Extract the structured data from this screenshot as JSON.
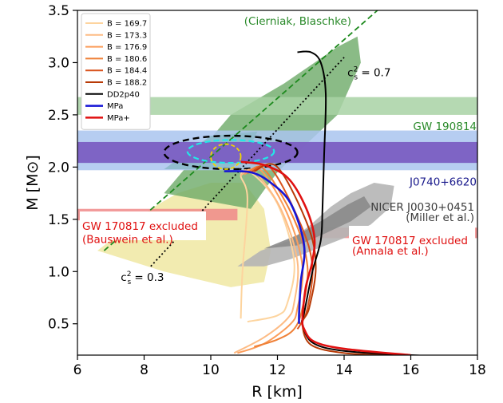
{
  "chart_data": {
    "type": "line",
    "xlabel": "R [km]",
    "ylabel": "M [M⊙]",
    "xlim": [
      6,
      18
    ],
    "ylim": [
      0.2,
      3.5
    ],
    "xticks": [
      "6",
      "8",
      "10",
      "12",
      "14",
      "16",
      "18"
    ],
    "yticks": [
      "0.5",
      "1.0",
      "1.5",
      "2.0",
      "2.5",
      "3.0",
      "3.5"
    ],
    "legend_position": "top-left",
    "series": [
      {
        "name": "B = 169.7",
        "color": "#fdd49e",
        "points": [
          [
            10.9,
            0.55
          ],
          [
            10.95,
            1.0
          ],
          [
            11.1,
            1.7
          ],
          [
            10.9,
            1.92
          ],
          [
            11.2,
            1.95
          ],
          [
            12.0,
            1.65
          ],
          [
            12.5,
            1.1
          ],
          [
            12.3,
            0.7
          ],
          [
            12.0,
            0.58
          ],
          [
            11.1,
            0.52
          ]
        ]
      },
      {
        "name": "B = 173.3",
        "color": "#fdbb84",
        "points": [
          [
            10.9,
            1.92
          ],
          [
            11.3,
            1.96
          ],
          [
            12.1,
            1.6
          ],
          [
            12.6,
            1.1
          ],
          [
            12.5,
            0.7
          ],
          [
            12.3,
            0.55
          ],
          [
            11.6,
            0.37
          ],
          [
            10.7,
            0.22
          ]
        ]
      },
      {
        "name": "B = 176.9",
        "color": "#fc9d5a",
        "points": [
          [
            11.0,
            1.93
          ],
          [
            11.5,
            1.97
          ],
          [
            12.3,
            1.55
          ],
          [
            12.75,
            1.05
          ],
          [
            12.6,
            0.65
          ],
          [
            12.4,
            0.5
          ],
          [
            11.6,
            0.31
          ],
          [
            10.8,
            0.22
          ]
        ]
      },
      {
        "name": "B = 180.6",
        "color": "#ef8037",
        "points": [
          [
            11.1,
            1.94
          ],
          [
            11.6,
            1.98
          ],
          [
            12.5,
            1.5
          ],
          [
            12.9,
            1.05
          ],
          [
            12.75,
            0.65
          ],
          [
            12.5,
            0.45
          ],
          [
            12.0,
            0.35
          ],
          [
            11.3,
            0.28
          ]
        ]
      },
      {
        "name": "B = 184.4",
        "color": "#d9531e",
        "points": [
          [
            11.2,
            1.95
          ],
          [
            11.8,
            1.99
          ],
          [
            12.7,
            1.45
          ],
          [
            13.05,
            1.05
          ],
          [
            12.9,
            0.65
          ],
          [
            12.7,
            0.5
          ],
          [
            12.6,
            0.45
          ]
        ]
      },
      {
        "name": "B = 188.2",
        "color": "#b83a06",
        "points": [
          [
            11.3,
            1.96
          ],
          [
            12.0,
            2.0
          ],
          [
            12.9,
            1.45
          ],
          [
            13.15,
            1.05
          ],
          [
            12.95,
            0.65
          ],
          [
            12.75,
            0.5
          ],
          [
            13.0,
            0.3
          ],
          [
            14.0,
            0.22
          ],
          [
            15.5,
            0.2
          ],
          [
            18,
            0.18
          ]
        ]
      },
      {
        "name": "DD2p40",
        "color": "#000000",
        "points": [
          [
            12.6,
            3.1
          ],
          [
            13.0,
            3.1
          ],
          [
            13.3,
            3.0
          ],
          [
            13.45,
            2.7
          ],
          [
            13.4,
            2.1
          ],
          [
            13.35,
            1.6
          ],
          [
            13.3,
            1.3
          ],
          [
            13.05,
            1.0
          ],
          [
            12.8,
            0.6
          ],
          [
            12.75,
            0.5
          ],
          [
            13.05,
            0.32
          ],
          [
            14.0,
            0.24
          ],
          [
            16.0,
            0.2
          ],
          [
            18.0,
            0.18
          ]
        ]
      },
      {
        "name": "MPa",
        "color": "#1515d6",
        "points": [
          [
            10.4,
            1.96
          ],
          [
            11.2,
            1.95
          ],
          [
            11.8,
            1.85
          ],
          [
            12.4,
            1.65
          ],
          [
            12.8,
            1.25
          ],
          [
            12.7,
            0.9
          ],
          [
            12.65,
            0.6
          ],
          [
            12.65,
            0.5
          ]
        ]
      },
      {
        "name": "MPa+",
        "color": "#e01010",
        "points": [
          [
            10.9,
            2.05
          ],
          [
            11.6,
            2.02
          ],
          [
            12.3,
            1.9
          ],
          [
            12.8,
            1.65
          ],
          [
            13.1,
            1.35
          ],
          [
            13.05,
            1.1
          ],
          [
            12.85,
            0.85
          ],
          [
            12.75,
            0.55
          ],
          [
            12.8,
            0.45
          ],
          [
            13.1,
            0.33
          ],
          [
            14.0,
            0.26
          ],
          [
            16.0,
            0.2
          ]
        ]
      }
    ],
    "bands": [
      {
        "label": "GW 190814",
        "color": "#a8d2a4",
        "ymin": 2.5,
        "ymax": 2.67,
        "label_color": "#2a8a2a"
      },
      {
        "label": "J0740+6620",
        "color": "#a9c4ef",
        "ymin": 1.97,
        "ymax": 2.35,
        "label_color": "#1a1a8c"
      },
      {
        "label": "",
        "color": "#7b5ec2",
        "ymin": 2.04,
        "ymax": 2.24
      },
      {
        "label": "GW 170817 excluded (Bauswein et al.)",
        "color": "#f08a8a",
        "xmin": 6,
        "xmax": 10.8,
        "ymin": 1.49,
        "ymax": 1.6,
        "label_color": "#e01010"
      },
      {
        "label": "GW 170817 excluded (Annala et al.)",
        "color": "#f08a8a",
        "xmin": 13.1,
        "xmax": 18,
        "ymin": 1.32,
        "ymax": 1.42,
        "label_color": "#e01010"
      }
    ],
    "annotations": [
      {
        "text": "(Cierniak, Blaschke)",
        "color": "#2a8a2a"
      },
      {
        "text": "c²s = 0.7",
        "color": "#000000"
      },
      {
        "text": "c²s = 0.3",
        "color": "#000000"
      },
      {
        "text": "NICER J0030+0451",
        "color": "#3c3c3c"
      },
      {
        "text": "(Miller et al.)",
        "color": "#3c3c3c"
      }
    ],
    "causality_line_x_at_M": {
      "slope_dashed": "R ≈ 2.9 M + 3.3",
      "slope_dotted": "R ≈ 4.1 M + 2.5"
    }
  },
  "labels": {
    "gw190814": "GW 190814",
    "j0740": "J0740+6620",
    "nicer1": "NICER J0030+0451",
    "nicer2": "(Miller et al.)",
    "baus1": "GW 170817 excluded",
    "baus2": "(Bauswein et al.)",
    "ann1": "GW 170817 excluded",
    "ann2": "(Annala et al.)",
    "cb": "(Cierniak, Blaschke)",
    "cs07_pre": "c",
    "cs07_sup": "2",
    "cs07_sub": "s",
    "cs07_post": " = 0.7",
    "cs03_pre": "c",
    "cs03_sup": "2",
    "cs03_sub": "s",
    "cs03_post": " = 0.3"
  }
}
